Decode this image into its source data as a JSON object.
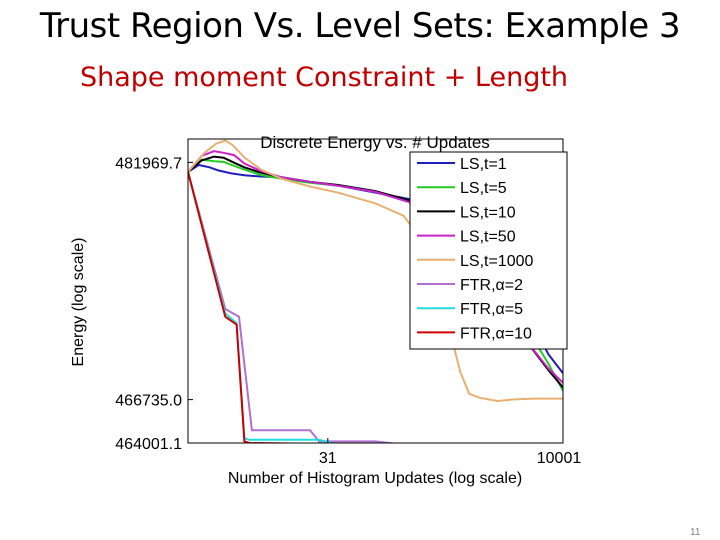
{
  "slide": {
    "title": "Trust Region Vs. Level Sets: Example 3",
    "subtitle": "Shape moment Constraint + Length",
    "page_number": "11"
  },
  "chart_data": {
    "type": "line",
    "title": "Discrete Energy vs. # Updates",
    "xlabel": "Number of Histogram Updates (log scale)",
    "ylabel": "Energy (log scale)",
    "x_scale": "log",
    "y_scale": "log",
    "xlim": [
      1,
      10001
    ],
    "ylim": [
      464001.1,
      483500
    ],
    "x_ticks": [
      {
        "value": 31,
        "label": "31"
      },
      {
        "value": 10001,
        "label": "10001"
      }
    ],
    "y_ticks": [
      {
        "value": 481969.7,
        "label": "481969.7"
      },
      {
        "value": 466735.0,
        "label": "466735.0"
      },
      {
        "value": 464001.1,
        "label": "464001.1"
      }
    ],
    "grid": false,
    "legend_position": "top-right",
    "series": [
      {
        "name": "LS,t=1",
        "color": "#1f1fbf",
        "x": [
          1,
          1.3,
          1.7,
          2.1,
          2.9,
          4,
          6,
          10,
          20,
          40,
          100,
          200,
          500,
          1000,
          2000,
          4000,
          7000,
          10001
        ],
        "y": [
          481350,
          481800,
          481650,
          481450,
          481250,
          481130,
          481050,
          481000,
          480700,
          480450,
          480000,
          479650,
          479200,
          478600,
          476000,
          472400,
          469600,
          468400
        ]
      },
      {
        "name": "LS,t=5",
        "color": "#22cc22",
        "x": [
          1,
          1.4,
          1.9,
          2.4,
          3.1,
          4,
          6,
          10,
          20,
          40,
          100,
          200,
          500,
          1000,
          2000,
          4000,
          7000,
          10001
        ],
        "y": [
          481350,
          482150,
          482050,
          482000,
          481750,
          481500,
          481150,
          480900,
          480650,
          480450,
          480050,
          479500,
          478900,
          478000,
          474500,
          471400,
          469000,
          467300
        ]
      },
      {
        "name": "LS,t=10",
        "color": "#000000",
        "x": [
          1,
          1.4,
          1.9,
          2.4,
          3.1,
          4,
          6,
          10,
          20,
          40,
          100,
          200,
          500,
          1000,
          2000,
          4000,
          7000,
          10001
        ],
        "y": [
          481350,
          482100,
          482350,
          482280,
          481950,
          481650,
          481300,
          481000,
          480700,
          480500,
          480100,
          479600,
          478800,
          477800,
          474000,
          470500,
          468600,
          467500
        ]
      },
      {
        "name": "LS,t=50",
        "color": "#cc22cc",
        "x": [
          1,
          1.4,
          1.9,
          2.4,
          3.1,
          4,
          6,
          10,
          20,
          40,
          100,
          200,
          500,
          1000,
          2000,
          4000,
          7000,
          10001
        ],
        "y": [
          481350,
          482400,
          482700,
          482600,
          482450,
          481900,
          481400,
          481000,
          480700,
          480450,
          480050,
          479500,
          478700,
          477500,
          473800,
          470500,
          468700,
          467800
        ]
      },
      {
        "name": "LS,t=1000",
        "color": "#e8b070",
        "x": [
          1,
          1.5,
          2,
          2.5,
          3,
          4,
          6,
          10,
          20,
          40,
          100,
          200,
          350,
          500,
          600,
          800,
          1000,
          1300,
          2000,
          3000,
          5000,
          10001
        ],
        "y": [
          481350,
          482600,
          483200,
          483400,
          483100,
          482300,
          481500,
          480900,
          480400,
          480000,
          479300,
          478500,
          476500,
          474000,
          471500,
          468500,
          467100,
          466850,
          466650,
          466750,
          466800,
          466800
        ]
      },
      {
        "name": "FTR,α=2",
        "color": "#b070d0",
        "x": [
          1,
          2.5,
          3.5,
          4.8,
          5.5,
          20,
          25,
          100,
          200,
          300,
          400,
          10001
        ],
        "y": [
          481350,
          472500,
          472000,
          464800,
          464800,
          464800,
          464100,
          464100,
          463900,
          463600,
          463400,
          463300
        ]
      },
      {
        "name": "FTR,α=5",
        "color": "#22dddd",
        "x": [
          1,
          2.5,
          3.3,
          4,
          4.5,
          25,
          40,
          100,
          10001
        ],
        "y": [
          481350,
          472200,
          471600,
          464300,
          464200,
          464200,
          463900,
          463800,
          463700
        ]
      },
      {
        "name": "FTR,α=10",
        "color": "#cc0000",
        "x": [
          1,
          2.5,
          3.3,
          4,
          4.5,
          100,
          10001
        ],
        "y": [
          481350,
          472000,
          471500,
          464100,
          464000,
          463900,
          463800
        ]
      }
    ]
  }
}
